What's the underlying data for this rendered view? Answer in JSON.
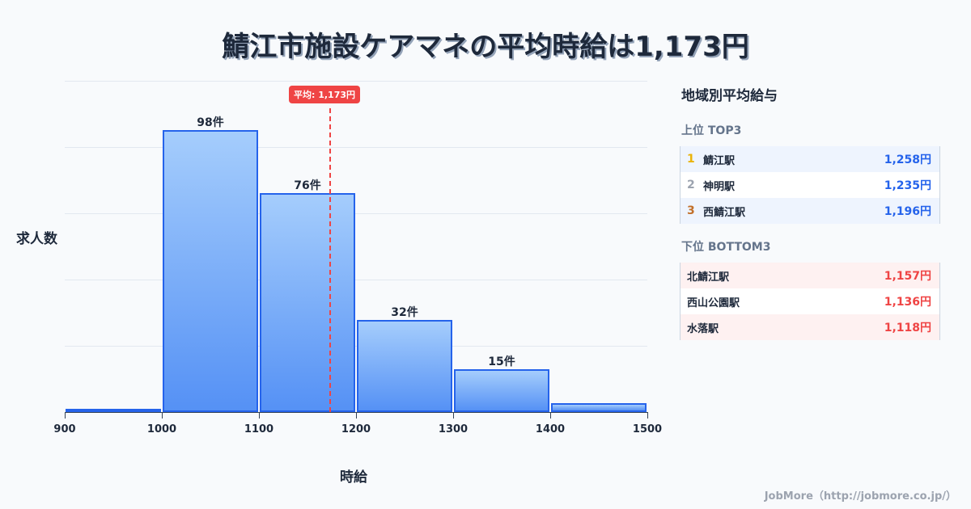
{
  "title": "鯖江市施設ケアマネの平均時給は1,173円",
  "chart_data": {
    "type": "bar",
    "title": "鯖江市施設ケアマネの平均時給は1,173円",
    "xlabel": "時給",
    "ylabel": "求人数",
    "categories": [
      "900-1000",
      "1000-1100",
      "1100-1200",
      "1200-1300",
      "1300-1400",
      "1400-1500"
    ],
    "values": [
      1,
      98,
      76,
      32,
      15,
      3
    ],
    "bar_labels": [
      "",
      "98件",
      "76件",
      "32件",
      "15件",
      ""
    ],
    "x_ticks": [
      "900",
      "1000",
      "1100",
      "1200",
      "1300",
      "1400",
      "1500"
    ],
    "xlim": [
      900,
      1500
    ],
    "ylim": [
      0,
      115
    ],
    "grid": true,
    "mean": {
      "value": 1173,
      "label": "平均: 1,173円"
    }
  },
  "panel": {
    "title": "地域別平均給与",
    "top_title": "上位 TOP3",
    "top": [
      {
        "rank": "1",
        "name": "鯖江駅",
        "value": "1,258円",
        "rank_color": "#eab308"
      },
      {
        "rank": "2",
        "name": "神明駅",
        "value": "1,235円",
        "rank_color": "#9ca3af"
      },
      {
        "rank": "3",
        "name": "西鯖江駅",
        "value": "1,196円",
        "rank_color": "#c2702a"
      }
    ],
    "bottom_title": "下位 BOTTOM3",
    "bottom": [
      {
        "name": "北鯖江駅",
        "value": "1,157円"
      },
      {
        "name": "西山公園駅",
        "value": "1,136円"
      },
      {
        "name": "水落駅",
        "value": "1,118円"
      }
    ]
  },
  "footer": "JobMore（http://jobmore.co.jp/）",
  "colors": {
    "bar_border": "#2563eb",
    "bar_top": "#a5cdfc",
    "bar_bottom": "#5591f5",
    "mean": "#ef4444",
    "top_value": "#2563eb",
    "bottom_value": "#ef4444"
  }
}
